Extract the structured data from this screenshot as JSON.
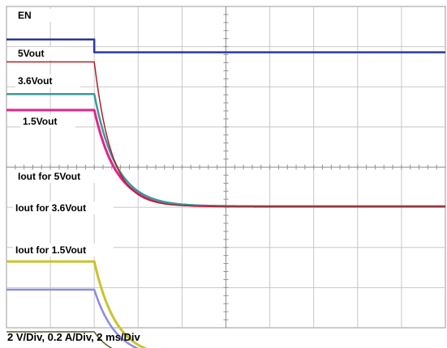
{
  "caption": "2 V/Div, 0.2 A/Div, 2 ms/Div",
  "chart_data": {
    "type": "line",
    "grid": true,
    "xlim": [
      0,
      20
    ],
    "x_unit": "ms",
    "divisions": {
      "x": 10,
      "y": 8
    },
    "event_time": 4,
    "series": [
      {
        "name": "EN",
        "color": "#2b3a9c",
        "width": 2.5,
        "tau": 0,
        "before": 1,
        "after": 0.68,
        "baseline": 1
      },
      {
        "name": "5Vout",
        "color": "#e0258a",
        "width": 3,
        "tau": 1.0,
        "before": 2.4,
        "after": 0,
        "baseline": 2
      },
      {
        "name": "3.6Vout",
        "color": "#3a9a9a",
        "width": 2.5,
        "tau": 1.0,
        "before": 2.8,
        "after": 0,
        "baseline": 2
      },
      {
        "name": "1.5Vout",
        "color": "#b01e28",
        "width": 1.5,
        "tau": 0.8,
        "before": 3.6,
        "after": 0,
        "baseline": 2
      },
      {
        "name": "Iout for 5Vout",
        "color": "#c9c42c",
        "width": 3,
        "tau": 1.0,
        "before": 2.4,
        "after": 0,
        "baseline": 3
      },
      {
        "name": "Iout for 3.6Vout",
        "color": "#8c8ce0",
        "width": 2.5,
        "tau": 1.0,
        "before": 1.7,
        "after": 0,
        "baseline": 3
      },
      {
        "name": "Iout for 1.5Vout",
        "color": "#5a5a2a",
        "width": 1.5,
        "tau": 0.8,
        "before": 0.65,
        "after": 0,
        "baseline": 3
      }
    ]
  }
}
